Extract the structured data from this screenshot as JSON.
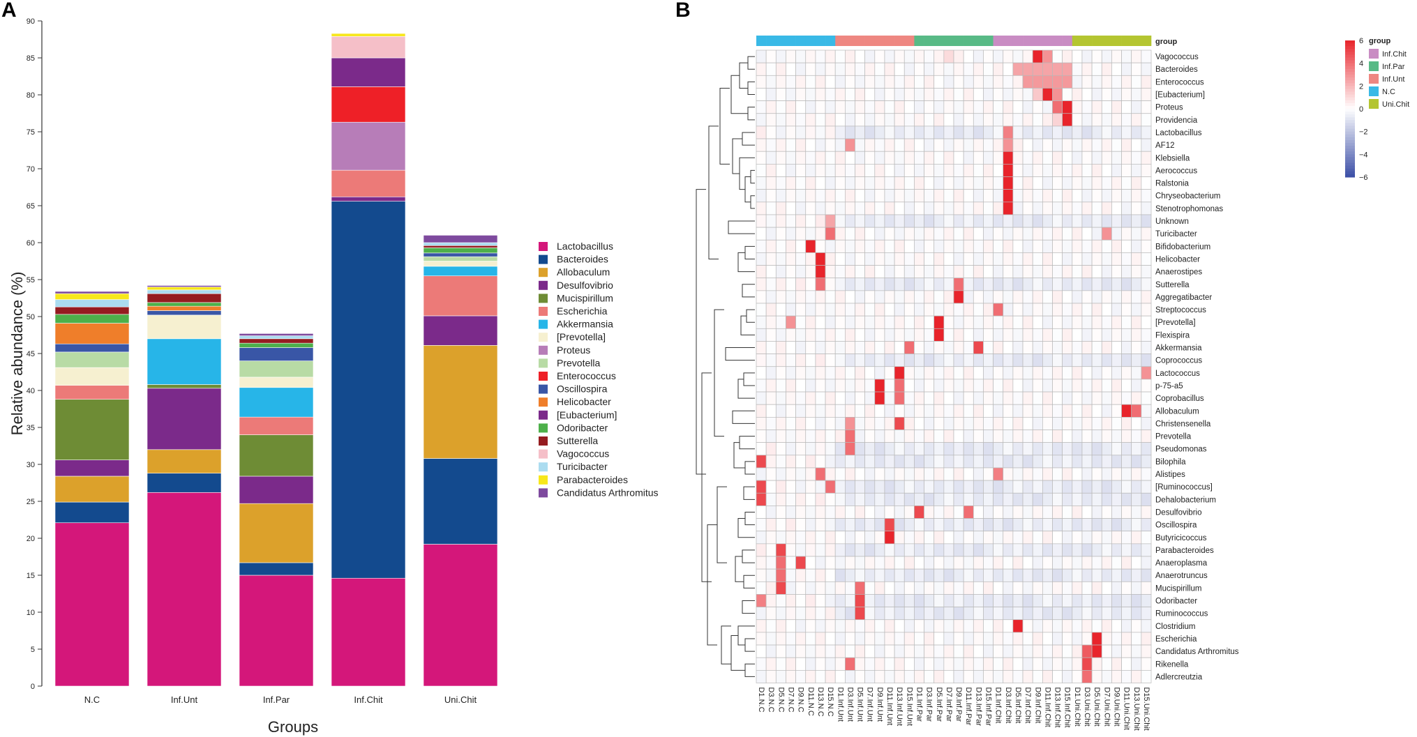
{
  "panels": {
    "a_label": "A",
    "b_label": "B"
  },
  "chart_data": [
    {
      "type": "bar",
      "stacked": true,
      "title": "",
      "xlabel": "Groups",
      "ylabel": "Relative abundance (%)",
      "ylim": [
        0,
        90
      ],
      "yticks": [
        0,
        5,
        10,
        15,
        20,
        25,
        30,
        35,
        40,
        45,
        50,
        55,
        60,
        65,
        70,
        75,
        80,
        85,
        90
      ],
      "categories": [
        "N.C",
        "Inf.Unt",
        "Inf.Par",
        "Inf.Chit",
        "Uni.Chit"
      ],
      "legend_position": "right",
      "series": [
        {
          "name": "Lactobacillus",
          "color": "#d4177a",
          "values": [
            22.1,
            26.2,
            15,
            14.6,
            19.2
          ]
        },
        {
          "name": "Bacteroides",
          "color": "#134a8e",
          "values": [
            2.8,
            2.6,
            1.7,
            51,
            11.6
          ]
        },
        {
          "name": "Allobaculum",
          "color": "#dca12b",
          "values": [
            3.5,
            3.2,
            8,
            0,
            15.3
          ]
        },
        {
          "name": "Desulfovibrio",
          "color": "#7b2a8a",
          "values": [
            2.2,
            8.3,
            3.7,
            0.6,
            4
          ]
        },
        {
          "name": "Mucispirillum",
          "color": "#6e8c35",
          "values": [
            8.2,
            0.5,
            5.6,
            0,
            0
          ]
        },
        {
          "name": "Escherichia",
          "color": "#ec7a78",
          "values": [
            1.9,
            0,
            2.4,
            3.6,
            5.4
          ]
        },
        {
          "name": "Akkermansia",
          "color": "#27b5e8",
          "values": [
            0,
            6.2,
            4,
            0,
            1.3
          ]
        },
        {
          "name": "[Prevotella]",
          "color": "#f6f0d0",
          "values": [
            2.4,
            3.2,
            1.4,
            0,
            0.7
          ]
        },
        {
          "name": "Proteus",
          "color": "#b77db8",
          "values": [
            0,
            0,
            0,
            6.5,
            0
          ]
        },
        {
          "name": "Prevotella",
          "color": "#b8dba5",
          "values": [
            2.1,
            0,
            2.2,
            0,
            0.6
          ]
        },
        {
          "name": "Enterococcus",
          "color": "#ee2027",
          "values": [
            0,
            0,
            0,
            4.8,
            0
          ]
        },
        {
          "name": "Oscillospira",
          "color": "#3956a6",
          "values": [
            1.1,
            0.6,
            1.8,
            0,
            0.5
          ]
        },
        {
          "name": "Helicobacter",
          "color": "#ef7e2a",
          "values": [
            2.8,
            0.6,
            0,
            0,
            0
          ]
        },
        {
          "name": "[Eubacterium]",
          "color": "#7b2a8a",
          "values": [
            0,
            0,
            0,
            3.9,
            0
          ]
        },
        {
          "name": "Odoribacter",
          "color": "#4db04a",
          "values": [
            1.2,
            0.5,
            0.6,
            0,
            0.7
          ]
        },
        {
          "name": "Sutterella",
          "color": "#951c20",
          "values": [
            1,
            1.2,
            0.6,
            0,
            0.3
          ]
        },
        {
          "name": "Vagococcus",
          "color": "#f5bfc8",
          "values": [
            0,
            0,
            0,
            2.9,
            0
          ]
        },
        {
          "name": "Turicibacter",
          "color": "#abdcf0",
          "values": [
            1,
            0.5,
            0.4,
            0,
            0.4
          ]
        },
        {
          "name": "Parabacteroides",
          "color": "#f7e71b",
          "values": [
            0.8,
            0.4,
            0,
            0.4,
            0
          ]
        },
        {
          "name": "Candidatus Arthromitus",
          "color": "#7e4a9e",
          "values": [
            0.3,
            0.2,
            0.3,
            0,
            1
          ]
        }
      ]
    },
    {
      "type": "heatmap",
      "title": "",
      "color_scale": {
        "min": -6,
        "max": 6,
        "ticks": [
          "6",
          "4",
          "2",
          "0",
          "−2",
          "−4",
          "−6"
        ],
        "low": "#3b4ea6",
        "mid": "#ffffff",
        "high": "#e8242b"
      },
      "group_annotation_label": "group",
      "groups": [
        {
          "name": "Inf.Chit",
          "color": "#c98cc3"
        },
        {
          "name": "Inf.Par",
          "color": "#58ba86"
        },
        {
          "name": "Inf.Unt",
          "color": "#ee8781"
        },
        {
          "name": "N.C",
          "color": "#39b9e6"
        },
        {
          "name": "Uni.Chit",
          "color": "#b4c531"
        }
      ],
      "columns": [
        "D1.N.C",
        "D3.N.C",
        "D5.N.C",
        "D7.N.C",
        "D9.N.C",
        "D11.N.C",
        "D13.N.C",
        "D15.N.C",
        "D1.Inf.Unt",
        "D3.Inf.Unt",
        "D5.Inf.Unt",
        "D7.Inf.Unt",
        "D9.Inf.Unt",
        "D11.Inf.Unt",
        "D13.Inf.Unt",
        "D15.Inf.Unt",
        "D1.Inf.Par",
        "D3.Inf.Par",
        "D5.Inf.Par",
        "D7.Inf.Par",
        "D9.Inf.Par",
        "D11.Inf.Par",
        "D13.Inf.Par",
        "D15.Inf.Par",
        "D1.Inf.Chit",
        "D3.Inf.Chit",
        "D5.Inf.Chit",
        "D7.Inf.Chit",
        "D9.Inf.Chit",
        "D11.Inf.Chit",
        "D13.Inf.Chit",
        "D15.Inf.Chit",
        "D1.Uni.Chit",
        "D3.Uni.Chit",
        "D5.Uni.Chit",
        "D7.Uni.Chit",
        "D9.Uni.Chit",
        "D11.Uni.Chit",
        "D13.Uni.Chit",
        "D15.Uni.Chit"
      ],
      "column_groups": [
        "N.C",
        "N.C",
        "N.C",
        "N.C",
        "N.C",
        "N.C",
        "N.C",
        "N.C",
        "Inf.Unt",
        "Inf.Unt",
        "Inf.Unt",
        "Inf.Unt",
        "Inf.Unt",
        "Inf.Unt",
        "Inf.Unt",
        "Inf.Unt",
        "Inf.Par",
        "Inf.Par",
        "Inf.Par",
        "Inf.Par",
        "Inf.Par",
        "Inf.Par",
        "Inf.Par",
        "Inf.Par",
        "Inf.Chit",
        "Inf.Chit",
        "Inf.Chit",
        "Inf.Chit",
        "Inf.Chit",
        "Inf.Chit",
        "Inf.Chit",
        "Inf.Chit",
        "Uni.Chit",
        "Uni.Chit",
        "Uni.Chit",
        "Uni.Chit",
        "Uni.Chit",
        "Uni.Chit",
        "Uni.Chit",
        "Uni.Chit"
      ],
      "rows": [
        "Vagococcus",
        "Bacteroides",
        "Enterococcus",
        "[Eubacterium]",
        "Proteus",
        "Providencia",
        "Lactobacillus",
        "AF12",
        "Klebsiella",
        "Aerococcus",
        "Ralstonia",
        "Chryseobacterium",
        "Stenotrophomonas",
        "Unknown",
        "Turicibacter",
        "Bifidobacterium",
        "Helicobacter",
        "Anaerostipes",
        "Sutterella",
        "Aggregatibacter",
        "Streptococcus",
        "[Prevotella]",
        "Flexispira",
        "Akkermansia",
        "Coprococcus",
        "Lactococcus",
        "p-75-a5",
        "Coprobacillus",
        "Allobaculum",
        "Christensenella",
        "Prevotella",
        "Pseudomonas",
        "Bilophila",
        "Alistipes",
        "[Ruminococcus]",
        "Dehalobacterium",
        "Desulfovibrio",
        "Oscillospira",
        "Butyricicoccus",
        "Parabacteroides",
        "Anaeroplasma",
        "Anaerotruncus",
        "Mucispirillum",
        "Odoribacter",
        "Ruminococcus",
        "Clostridium",
        "Escherichia",
        "Candidatus Arthromitus",
        "Rikenella",
        "Adlercreutzia"
      ],
      "hotspots": [
        {
          "row": "Vagococcus",
          "cols": [
            28
          ],
          "value": 6
        },
        {
          "row": "Vagococcus",
          "cols": [
            29
          ],
          "value": 3
        },
        {
          "row": "Vagococcus",
          "cols": [
            19
          ],
          "value": 1
        },
        {
          "row": "Bacteroides",
          "cols": [
            26,
            27,
            28,
            29,
            30,
            31
          ],
          "value": 2.5
        },
        {
          "row": "Enterococcus",
          "cols": [
            27,
            28,
            29,
            30,
            31
          ],
          "value": 2.8
        },
        {
          "row": "[Eubacterium]",
          "cols": [
            29
          ],
          "value": 6
        },
        {
          "row": "[Eubacterium]",
          "cols": [
            28
          ],
          "value": 1.5
        },
        {
          "row": "[Eubacterium]",
          "cols": [
            30
          ],
          "value": 3
        },
        {
          "row": "Proteus",
          "cols": [
            30
          ],
          "value": 4
        },
        {
          "row": "Proteus",
          "cols": [
            31
          ],
          "value": 6
        },
        {
          "row": "Providencia",
          "cols": [
            31
          ],
          "value": 6
        },
        {
          "row": "Providencia",
          "cols": [
            30
          ],
          "value": 1.2
        },
        {
          "row": "Lactobacillus",
          "cols": [
            25
          ],
          "value": 3.5
        },
        {
          "row": "AF12",
          "cols": [
            25
          ],
          "value": 3
        },
        {
          "row": "AF12",
          "cols": [
            9
          ],
          "value": 3
        },
        {
          "row": "Klebsiella",
          "cols": [
            25
          ],
          "value": 6
        },
        {
          "row": "Aerococcus",
          "cols": [
            25
          ],
          "value": 6
        },
        {
          "row": "Ralstonia",
          "cols": [
            25
          ],
          "value": 6
        },
        {
          "row": "Chryseobacterium",
          "cols": [
            25
          ],
          "value": 6
        },
        {
          "row": "Stenotrophomonas",
          "cols": [
            25
          ],
          "value": 6
        },
        {
          "row": "Unknown",
          "cols": [
            7
          ],
          "value": 2.5
        },
        {
          "row": "Turicibacter",
          "cols": [
            7
          ],
          "value": 4
        },
        {
          "row": "Turicibacter",
          "cols": [
            35
          ],
          "value": 3
        },
        {
          "row": "Bifidobacterium",
          "cols": [
            5
          ],
          "value": 6
        },
        {
          "row": "Helicobacter",
          "cols": [
            6
          ],
          "value": 6
        },
        {
          "row": "Anaerostipes",
          "cols": [
            6
          ],
          "value": 6
        },
        {
          "row": "Sutterella",
          "cols": [
            6
          ],
          "value": 4
        },
        {
          "row": "Sutterella",
          "cols": [
            20
          ],
          "value": 4
        },
        {
          "row": "Aggregatibacter",
          "cols": [
            20
          ],
          "value": 6
        },
        {
          "row": "Streptococcus",
          "cols": [
            24
          ],
          "value": 4
        },
        {
          "row": "[Prevotella]",
          "cols": [
            18
          ],
          "value": 6
        },
        {
          "row": "[Prevotella]",
          "cols": [
            3
          ],
          "value": 3
        },
        {
          "row": "Flexispira",
          "cols": [
            18
          ],
          "value": 6
        },
        {
          "row": "Akkermansia",
          "cols": [
            15
          ],
          "value": 4
        },
        {
          "row": "Akkermansia",
          "cols": [
            22
          ],
          "value": 5
        },
        {
          "row": "Lactococcus",
          "cols": [
            14
          ],
          "value": 6
        },
        {
          "row": "Lactococcus",
          "cols": [
            39
          ],
          "value": 3
        },
        {
          "row": "p-75-a5",
          "cols": [
            12
          ],
          "value": 6
        },
        {
          "row": "p-75-a5",
          "cols": [
            14
          ],
          "value": 4
        },
        {
          "row": "Coprobacillus",
          "cols": [
            12
          ],
          "value": 6
        },
        {
          "row": "Coprobacillus",
          "cols": [
            14
          ],
          "value": 4
        },
        {
          "row": "Allobaculum",
          "cols": [
            37
          ],
          "value": 6
        },
        {
          "row": "Allobaculum",
          "cols": [
            38
          ],
          "value": 4
        },
        {
          "row": "Christensenella",
          "cols": [
            14
          ],
          "value": 5
        },
        {
          "row": "Christensenella",
          "cols": [
            9
          ],
          "value": 3
        },
        {
          "row": "Prevotella",
          "cols": [
            9
          ],
          "value": 4
        },
        {
          "row": "Pseudomonas",
          "cols": [
            9
          ],
          "value": 4
        },
        {
          "row": "Bilophila",
          "cols": [
            0
          ],
          "value": 5
        },
        {
          "row": "Alistipes",
          "cols": [
            6
          ],
          "value": 4
        },
        {
          "row": "Alistipes",
          "cols": [
            24
          ],
          "value": 3.5
        },
        {
          "row": "[Ruminococcus]",
          "cols": [
            0
          ],
          "value": 5
        },
        {
          "row": "[Ruminococcus]",
          "cols": [
            7
          ],
          "value": 4
        },
        {
          "row": "Dehalobacterium",
          "cols": [
            0
          ],
          "value": 5
        },
        {
          "row": "Desulfovibrio",
          "cols": [
            16
          ],
          "value": 5
        },
        {
          "row": "Desulfovibrio",
          "cols": [
            21
          ],
          "value": 4
        },
        {
          "row": "Oscillospira",
          "cols": [
            13
          ],
          "value": 5
        },
        {
          "row": "Butyricicoccus",
          "cols": [
            13
          ],
          "value": 6
        },
        {
          "row": "Parabacteroides",
          "cols": [
            2
          ],
          "value": 5
        },
        {
          "row": "Anaeroplasma",
          "cols": [
            4
          ],
          "value": 5
        },
        {
          "row": "Anaeroplasma",
          "cols": [
            2
          ],
          "value": 4
        },
        {
          "row": "Anaerotruncus",
          "cols": [
            2
          ],
          "value": 4
        },
        {
          "row": "Mucispirillum",
          "cols": [
            2
          ],
          "value": 5
        },
        {
          "row": "Mucispirillum",
          "cols": [
            10
          ],
          "value": 4
        },
        {
          "row": "Odoribacter",
          "cols": [
            10
          ],
          "value": 5
        },
        {
          "row": "Odoribacter",
          "cols": [
            0
          ],
          "value": 3.5
        },
        {
          "row": "Ruminococcus",
          "cols": [
            10
          ],
          "value": 5
        },
        {
          "row": "Clostridium",
          "cols": [
            26
          ],
          "value": 6
        },
        {
          "row": "Escherichia",
          "cols": [
            34
          ],
          "value": 6
        },
        {
          "row": "Candidatus Arthromitus",
          "cols": [
            34
          ],
          "value": 6
        },
        {
          "row": "Candidatus Arthromitus",
          "cols": [
            33
          ],
          "value": 4.5
        },
        {
          "row": "Rikenella",
          "cols": [
            33
          ],
          "value": 5
        },
        {
          "row": "Rikenella",
          "cols": [
            9
          ],
          "value": 4
        },
        {
          "row": "Adlercreutzia",
          "cols": [
            33
          ],
          "value": 4
        }
      ],
      "mild_negative_rows": [
        "Lactobacillus",
        "Unknown",
        "Sutterella",
        "Coprococcus",
        "[Ruminococcus]",
        "Oscillospira",
        "Anaerotruncus",
        "Parabacteroides",
        "Odoribacter",
        "Ruminococcus",
        "Pseudomonas",
        "Bilophila",
        "Dehalobacterium"
      ]
    }
  ]
}
